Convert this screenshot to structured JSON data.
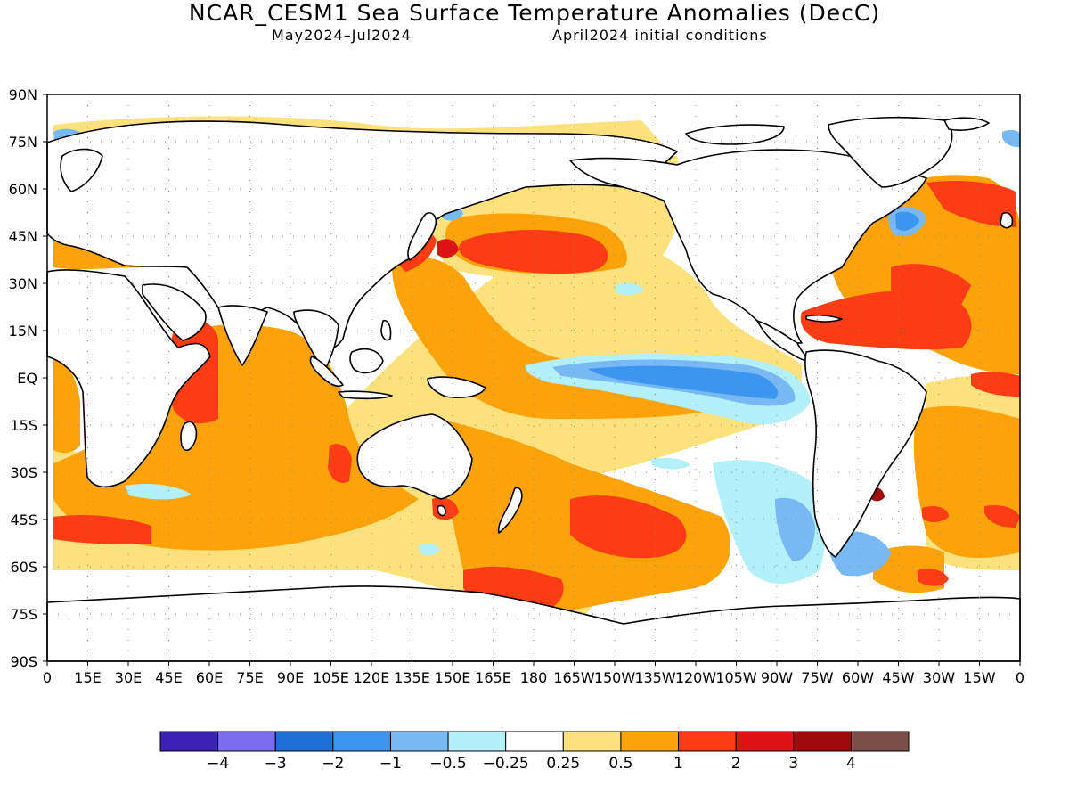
{
  "title": "NCAR_CESM1 Sea Surface Temperature Anomalies (DecC)",
  "subtitle_left": "May2024–Jul2024",
  "subtitle_right": "April2024 initial conditions",
  "lat_labels": [
    "90N",
    "75N",
    "60N",
    "45N",
    "30N",
    "15N",
    "EQ",
    "15S",
    "30S",
    "45S",
    "60S",
    "75S",
    "90S"
  ],
  "lon_labels": [
    "0",
    "15E",
    "30E",
    "45E",
    "60E",
    "75E",
    "90E",
    "105E",
    "120E",
    "135E",
    "150E",
    "165E",
    "180",
    "165W",
    "150W",
    "135W",
    "120W",
    "105W",
    "90W",
    "75W",
    "60W",
    "45W",
    "30W",
    "15W",
    "0"
  ],
  "legend": {
    "colors": [
      "#3c1fb4",
      "#7c6cf0",
      "#1f6ed6",
      "#3c96f0",
      "#78b8f5",
      "#b4f0fa",
      "#ffffff",
      "#fde17c",
      "#fca30c",
      "#fc3c14",
      "#dc1414",
      "#a00a0a",
      "#7a5046"
    ],
    "labels": [
      "−4",
      "−3",
      "−2",
      "−1",
      "−0.5",
      "−0.25",
      "0.25",
      "0.5",
      "1",
      "2",
      "3",
      "4"
    ]
  },
  "palette": {
    "weak_cold": "#b4f0fa",
    "cold_1": "#78b8f5",
    "cold_2": "#3c96f0",
    "warm_025": "#fde17c",
    "warm_05": "#fca30c",
    "warm_1": "#fc3c14",
    "warm_2": "#dc1414",
    "warm_3": "#a00a0a"
  }
}
